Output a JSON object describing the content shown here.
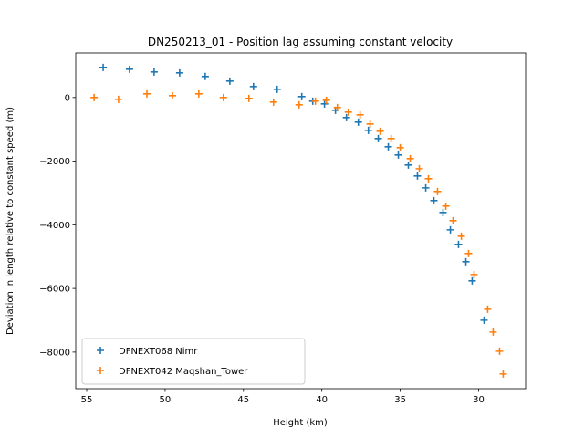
{
  "chart_data": {
    "type": "scatter",
    "title": "DN250213_01 - Position lag assuming constant velocity",
    "x_label": "Height (km)",
    "y_label": "Deviation in length relative to constant speed (m)",
    "xlim": [
      55.7,
      27.0
    ],
    "ylim": [
      -9150,
      1400
    ],
    "xticks": [
      55,
      50,
      45,
      40,
      35,
      30
    ],
    "yticks": [
      {
        "value": -8000,
        "label": "−8000"
      },
      {
        "value": -6000,
        "label": "−6000"
      },
      {
        "value": -4000,
        "label": "−4000"
      },
      {
        "value": -2000,
        "label": "−2000"
      },
      0
    ],
    "legend": "lower left",
    "marker": "+",
    "series": [
      {
        "name": "DFNEXT068 Nimr",
        "color": "#1f77b4",
        "x": [
          53.95,
          52.27,
          50.7,
          49.07,
          47.44,
          45.87,
          44.36,
          42.85,
          41.28,
          40.58,
          39.83,
          39.13,
          38.43,
          37.67,
          37.03,
          36.4,
          35.76,
          35.12,
          34.48,
          33.9,
          33.37,
          32.85,
          32.27,
          31.8,
          31.28,
          30.81,
          30.41,
          29.65
        ],
        "values": [
          946,
          889,
          803,
          774,
          660,
          516,
          344,
          258,
          29,
          -115,
          -201,
          -401,
          -631,
          -774,
          -1032,
          -1290,
          -1548,
          -1806,
          -2122,
          -2466,
          -2839,
          -3240,
          -3613,
          -4158,
          -4616,
          -5161,
          -5763,
          -6996
        ]
      },
      {
        "name": "DFNEXT042 Maqshan_Tower",
        "color": "#ff7f0e",
        "x": [
          54.53,
          52.97,
          51.16,
          49.53,
          47.85,
          46.28,
          44.65,
          43.08,
          41.45,
          40.41,
          39.71,
          39.01,
          38.31,
          37.56,
          36.92,
          36.28,
          35.58,
          35.0,
          34.36,
          33.78,
          33.2,
          32.62,
          32.09,
          31.63,
          31.1,
          30.64,
          30.29,
          29.42,
          29.07,
          28.66,
          28.43
        ],
        "values": [
          0,
          -57,
          115,
          57,
          115,
          0,
          -29,
          -143,
          -229,
          -115,
          -86,
          -315,
          -459,
          -545,
          -832,
          -1061,
          -1290,
          -1577,
          -1921,
          -2237,
          -2552,
          -2953,
          -3412,
          -3871,
          -4358,
          -4903,
          -5563,
          -6652,
          -7369,
          -7971,
          -8688
        ]
      }
    ]
  }
}
